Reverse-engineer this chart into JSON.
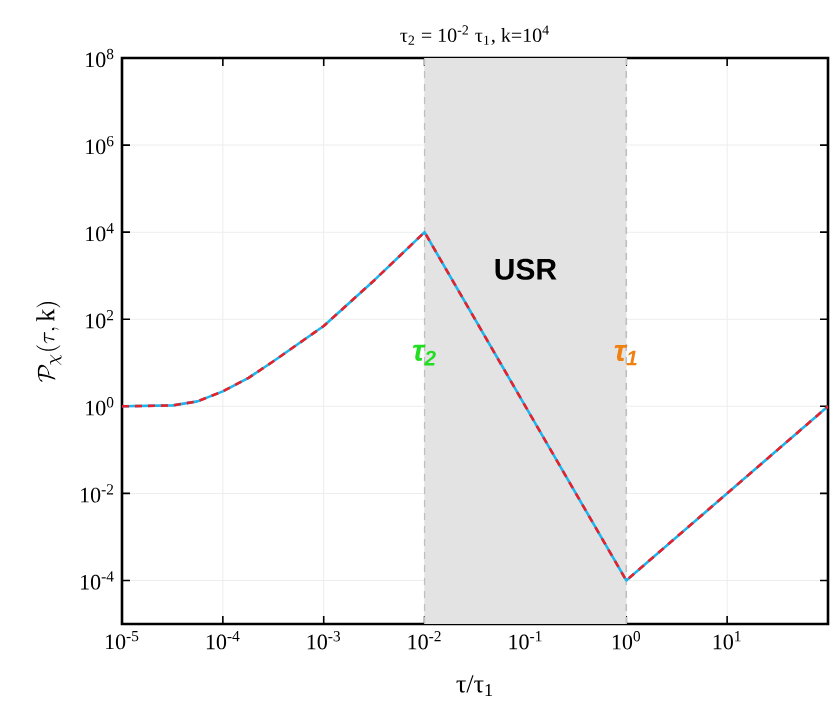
{
  "chart_data": {
    "type": "line",
    "title": "τ$_{2}$ = 10$^{-2}$ τ$_{1}$, k=10$^{4}$",
    "xlabel": "τ/τ$_{1}$",
    "ylabel": "\\mathcal{P}_\\chi(\\tau,\\mathrm{k})",
    "log": "xy",
    "grid": true,
    "marker": "none",
    "x": [
      1e-05,
      3.2e-05,
      5.6e-05,
      0.0001,
      0.00018,
      0.00032,
      0.001,
      0.0032,
      0.01,
      1,
      100
    ],
    "series": [
      {
        "color": "#1fb4ec",
        "line_style": "solid",
        "values": [
          1,
          1.05,
          1.3,
          2.2,
          4.5,
          11,
          70,
          800,
          10000,
          0.0001,
          1
        ]
      },
      {
        "color": "#e8202a",
        "line_style": "dashed",
        "values": [
          1,
          1.05,
          1.3,
          2.2,
          4.5,
          11,
          70,
          800,
          10000,
          0.0001,
          1
        ]
      }
    ],
    "xlim": [
      1e-05,
      100
    ],
    "xticks": [
      {
        "value": 1e-05,
        "label": "10$^{-5}$"
      },
      {
        "value": 0.0001,
        "label": "10$^{-4}$"
      },
      {
        "value": 0.001,
        "label": "10$^{-3}$"
      },
      {
        "value": 0.01,
        "label": "10$^{-2}$"
      },
      {
        "value": 0.1,
        "label": "10$^{-1}$"
      },
      {
        "value": 1,
        "label": "10$^{0}$"
      },
      {
        "value": 10,
        "label": "10$^{1}$"
      }
    ],
    "ylim": [
      1e-05,
      100000000.0
    ],
    "yticks": [
      {
        "value": 0.0001,
        "label": "10$^{-4}$"
      },
      {
        "value": 0.01,
        "label": "10$^{-2}$"
      },
      {
        "value": 1,
        "label": "10$^{0}$"
      },
      {
        "value": 100,
        "label": "10$^{2}$"
      },
      {
        "value": 10000,
        "label": "10$^{4}$"
      },
      {
        "value": 1000000.0,
        "label": "10$^{6}$"
      },
      {
        "value": 100000000.0,
        "label": "10$^{8}$"
      }
    ],
    "bands": [
      {
        "axis": "x",
        "from": 0.01,
        "to": 1,
        "label": "USR",
        "color": "#e3e3e3"
      }
    ],
    "annotations": [
      {
        "text": "τ$_{2}$",
        "x": 0.01,
        "y": 15
      },
      {
        "text": "τ$_{1}$",
        "x": 1,
        "y": 15
      }
    ]
  }
}
